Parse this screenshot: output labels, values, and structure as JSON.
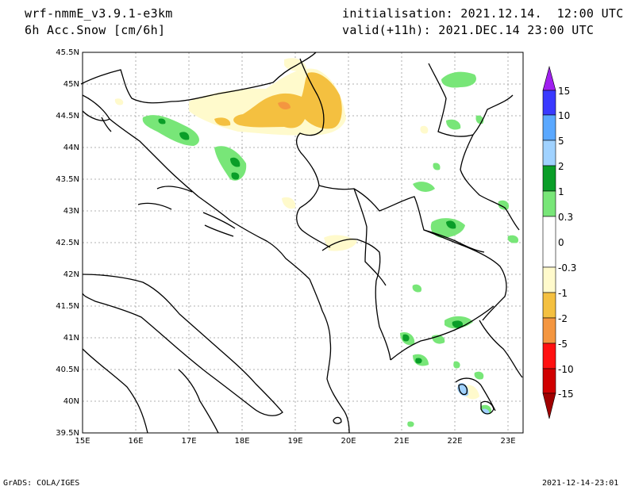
{
  "header": {
    "model": "wrf-nmmE_v3.9.1-e3km",
    "variable": "6h Acc.Snow [cm/6h]",
    "init_label": "initialisation: 2021.12.14.  12:00 UTC",
    "valid_label": "valid(+11h): 2021.DEC.14 23:00 UTC"
  },
  "map": {
    "lat_labels": [
      "45.5N",
      "45N",
      "44.5N",
      "44N",
      "43.5N",
      "43N",
      "42.5N",
      "42N",
      "41.5N",
      "41N",
      "40.5N",
      "40N",
      "39.5N"
    ],
    "lon_labels": [
      "15E",
      "16E",
      "17E",
      "18E",
      "19E",
      "20E",
      "21E",
      "22E",
      "23E"
    ],
    "grid": true,
    "border_color": "#000000"
  },
  "colorbar": {
    "labels": [
      "15",
      "10",
      "5",
      "2",
      "1",
      "0.3",
      "0",
      "-0.3",
      "-1",
      "-2",
      "-5",
      "-10",
      "-15"
    ],
    "colors": [
      "#a020f0",
      "#3a3aff",
      "#5aa8ff",
      "#a0d2ff",
      "#0a9e28",
      "#78e678",
      "#ffffff",
      "#fffacc",
      "#f4c040",
      "#f49640",
      "#ff1010",
      "#d00000",
      "#a00000"
    ]
  },
  "footer": {
    "left": "GrADS: COLA/IGES",
    "right": "2021-12-14-23:01"
  }
}
